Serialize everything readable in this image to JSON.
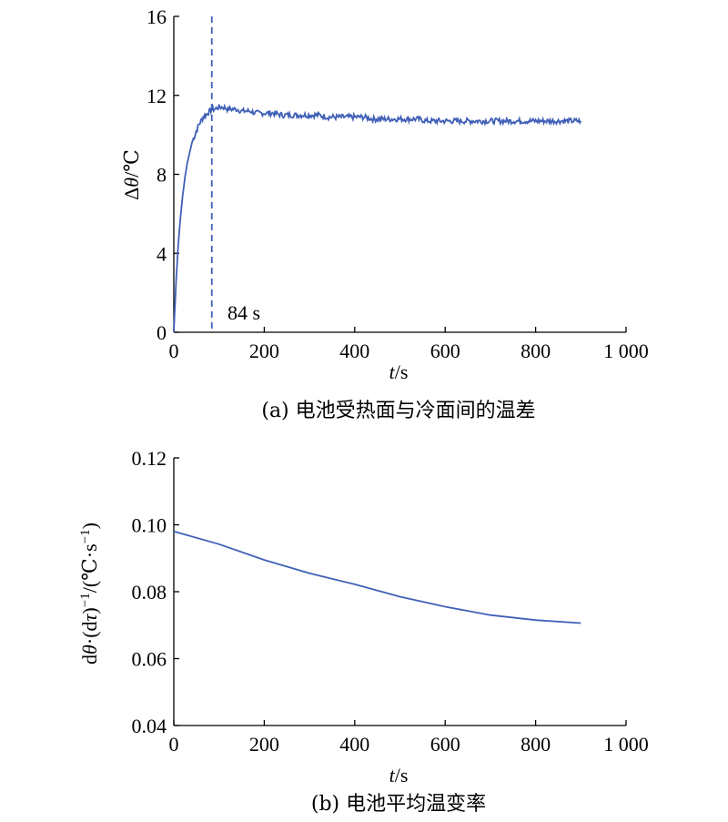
{
  "chart_data": [
    {
      "type": "line",
      "caption": "(a) 电池受热面与冷面间的温差",
      "xlabel": "t/s",
      "ylabel": "Δθ/℃",
      "xlim": [
        0,
        1000
      ],
      "ylim": [
        0,
        16
      ],
      "xticks": [
        0,
        200,
        400,
        600,
        800,
        1000
      ],
      "xtick_labels": [
        "0",
        "200",
        "400",
        "600",
        "800",
        "1 000"
      ],
      "yticks": [
        0,
        4,
        8,
        12,
        16
      ],
      "ytick_labels": [
        "0",
        "4",
        "8",
        "12",
        "16"
      ],
      "series": [
        {
          "color": "#4060b8",
          "x": [
            0,
            5,
            10,
            15,
            20,
            25,
            30,
            35,
            40,
            45,
            50,
            55,
            60,
            65,
            70,
            75,
            80,
            84,
            90,
            100,
            110,
            120,
            130,
            140,
            150,
            160,
            170,
            180,
            190,
            200,
            220,
            240,
            260,
            280,
            300,
            320,
            340,
            360,
            380,
            400,
            420,
            440,
            460,
            480,
            500,
            520,
            540,
            560,
            580,
            600,
            620,
            640,
            660,
            680,
            700,
            720,
            740,
            760,
            780,
            800,
            820,
            840,
            860,
            880,
            900
          ],
          "y": [
            0,
            2.6,
            4.5,
            5.9,
            7.0,
            7.9,
            8.6,
            9.1,
            9.6,
            9.9,
            10.2,
            10.5,
            10.7,
            10.9,
            11.0,
            11.1,
            11.2,
            11.3,
            11.3,
            11.4,
            11.4,
            11.3,
            11.3,
            11.3,
            11.2,
            11.2,
            11.2,
            11.1,
            11.1,
            11.1,
            11.1,
            11.0,
            11.0,
            11.0,
            11.0,
            11.0,
            10.9,
            10.9,
            10.9,
            10.9,
            10.9,
            10.8,
            10.8,
            10.8,
            10.8,
            10.8,
            10.8,
            10.7,
            10.7,
            10.7,
            10.7,
            10.7,
            10.7,
            10.7,
            10.7,
            10.7,
            10.7,
            10.7,
            10.7,
            10.7,
            10.7,
            10.7,
            10.7,
            10.7,
            10.7
          ]
        }
      ],
      "annotations": [
        {
          "type": "vline",
          "x": 84,
          "label": "84 s"
        }
      ]
    },
    {
      "type": "line",
      "caption": "(b) 电池平均温变率",
      "xlabel": "t/s",
      "ylabel": "dθ·(dτ)⁻¹/(℃·s⁻¹)",
      "xlim": [
        0,
        1000
      ],
      "ylim": [
        0.04,
        0.12
      ],
      "xticks": [
        0,
        200,
        400,
        600,
        800,
        1000
      ],
      "xtick_labels": [
        "0",
        "200",
        "400",
        "600",
        "800",
        "1 000"
      ],
      "yticks": [
        0.04,
        0.06,
        0.08,
        0.1,
        0.12
      ],
      "ytick_labels": [
        "0.04",
        "0.06",
        "0.08",
        "0.10",
        "0.12"
      ],
      "series": [
        {
          "color": "#4060b8",
          "x": [
            0,
            100,
            200,
            300,
            400,
            500,
            600,
            700,
            800,
            900
          ],
          "y": [
            0.098,
            0.0942,
            0.0895,
            0.0855,
            0.0822,
            0.0785,
            0.0755,
            0.073,
            0.0715,
            0.0706
          ]
        }
      ]
    }
  ]
}
